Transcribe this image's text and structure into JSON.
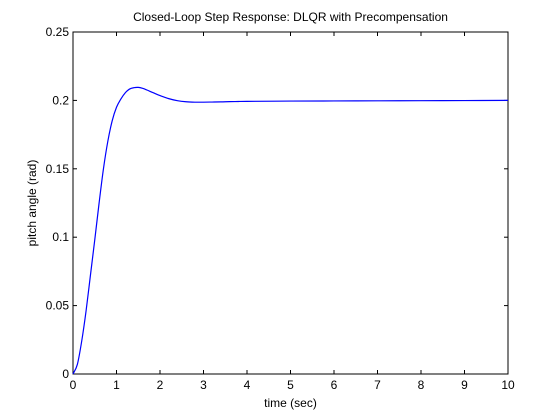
{
  "chart_data": {
    "type": "line",
    "title": "Closed-Loop Step Response: DLQR with Precompensation",
    "xlabel": "time (sec)",
    "ylabel": "pitch angle (rad)",
    "xlim": [
      0,
      10
    ],
    "ylim": [
      0,
      0.25
    ],
    "grid": false,
    "x_ticks": [
      0,
      1,
      2,
      3,
      4,
      5,
      6,
      7,
      8,
      9,
      10
    ],
    "x_tick_labels": [
      "0",
      "1",
      "2",
      "3",
      "4",
      "5",
      "6",
      "7",
      "8",
      "9",
      "10"
    ],
    "y_ticks": [
      0,
      0.05,
      0.1,
      0.15,
      0.2,
      0.25
    ],
    "y_tick_labels": [
      "0",
      "0.05",
      "0.1",
      "0.15",
      "0.2",
      "0.25"
    ],
    "line_color": "#0000ff",
    "series": [
      {
        "x": [
          0,
          0.1,
          0.2,
          0.3,
          0.4,
          0.5,
          0.6,
          0.7,
          0.8,
          0.9,
          1.0,
          1.1,
          1.2,
          1.3,
          1.4,
          1.5,
          1.6,
          1.7,
          1.8,
          1.9,
          2.0,
          2.2,
          2.4,
          2.6,
          2.8,
          3.0,
          3.2,
          3.4,
          3.6,
          3.8,
          4.0,
          5.0,
          6.0,
          7.0,
          8.0,
          9.0,
          10.0
        ],
        "y": [
          0,
          0.007,
          0.024,
          0.046,
          0.072,
          0.098,
          0.125,
          0.15,
          0.17,
          0.185,
          0.195,
          0.201,
          0.2055,
          0.2083,
          0.2093,
          0.2095,
          0.2088,
          0.2076,
          0.2062,
          0.2048,
          0.2035,
          0.2013,
          0.1998,
          0.199,
          0.1987,
          0.1987,
          0.1988,
          0.1989,
          0.1991,
          0.1992,
          0.1993,
          0.1995,
          0.1996,
          0.1997,
          0.1998,
          0.1999,
          0.2
        ]
      }
    ]
  }
}
